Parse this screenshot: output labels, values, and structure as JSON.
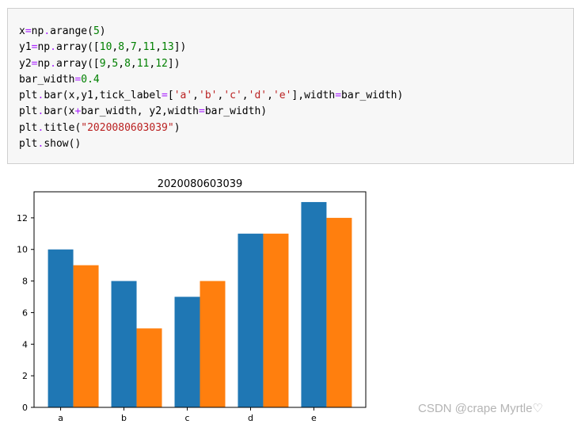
{
  "code_cell": {
    "lines": [
      [
        {
          "t": "x"
        },
        {
          "t": "=",
          "c": "op"
        },
        {
          "t": "np"
        },
        {
          "t": ".",
          "c": "op"
        },
        {
          "t": "arange"
        },
        {
          "t": "("
        },
        {
          "t": "5",
          "c": "num"
        },
        {
          "t": ")"
        }
      ],
      [
        {
          "t": "y1"
        },
        {
          "t": "=",
          "c": "op"
        },
        {
          "t": "np"
        },
        {
          "t": ".",
          "c": "op"
        },
        {
          "t": "array"
        },
        {
          "t": "(["
        },
        {
          "t": "10",
          "c": "num"
        },
        {
          "t": ","
        },
        {
          "t": "8",
          "c": "num"
        },
        {
          "t": ","
        },
        {
          "t": "7",
          "c": "num"
        },
        {
          "t": ","
        },
        {
          "t": "11",
          "c": "num"
        },
        {
          "t": ","
        },
        {
          "t": "13",
          "c": "num"
        },
        {
          "t": "])"
        }
      ],
      [
        {
          "t": "y2"
        },
        {
          "t": "=",
          "c": "op"
        },
        {
          "t": "np"
        },
        {
          "t": ".",
          "c": "op"
        },
        {
          "t": "array"
        },
        {
          "t": "(["
        },
        {
          "t": "9",
          "c": "num"
        },
        {
          "t": ","
        },
        {
          "t": "5",
          "c": "num"
        },
        {
          "t": ","
        },
        {
          "t": "8",
          "c": "num"
        },
        {
          "t": ","
        },
        {
          "t": "11",
          "c": "num"
        },
        {
          "t": ","
        },
        {
          "t": "12",
          "c": "num"
        },
        {
          "t": "])"
        }
      ],
      [
        {
          "t": "bar_width"
        },
        {
          "t": "=",
          "c": "op"
        },
        {
          "t": "0.4",
          "c": "num"
        }
      ],
      [
        {
          "t": "plt"
        },
        {
          "t": ".",
          "c": "op"
        },
        {
          "t": "bar(x,y1,tick_label"
        },
        {
          "t": "=",
          "c": "op"
        },
        {
          "t": "["
        },
        {
          "t": "'a'",
          "c": "str"
        },
        {
          "t": ","
        },
        {
          "t": "'b'",
          "c": "str"
        },
        {
          "t": ","
        },
        {
          "t": "'c'",
          "c": "str"
        },
        {
          "t": ","
        },
        {
          "t": "'d'",
          "c": "str"
        },
        {
          "t": ","
        },
        {
          "t": "'e'",
          "c": "str"
        },
        {
          "t": "],width"
        },
        {
          "t": "=",
          "c": "op"
        },
        {
          "t": "bar_width)"
        }
      ],
      [
        {
          "t": "plt"
        },
        {
          "t": ".",
          "c": "op"
        },
        {
          "t": "bar(x"
        },
        {
          "t": "+",
          "c": "op"
        },
        {
          "t": "bar_width, y2,width"
        },
        {
          "t": "=",
          "c": "op"
        },
        {
          "t": "bar_width)"
        }
      ],
      [
        {
          "t": "plt"
        },
        {
          "t": ".",
          "c": "op"
        },
        {
          "t": "title("
        },
        {
          "t": "\"2020080603039\"",
          "c": "str"
        },
        {
          "t": ")"
        }
      ],
      [
        {
          "t": "plt"
        },
        {
          "t": ".",
          "c": "op"
        },
        {
          "t": "show()"
        }
      ]
    ]
  },
  "chart_data": {
    "type": "bar",
    "title": "2020080603039",
    "xlabel": "",
    "ylabel": "",
    "categories": [
      "a",
      "b",
      "c",
      "d",
      "e"
    ],
    "series": [
      {
        "values": [
          10,
          8,
          7,
          11,
          13
        ],
        "color": "#1f77b4"
      },
      {
        "values": [
          9,
          5,
          8,
          11,
          12
        ],
        "color": "#ff7f0e"
      }
    ],
    "bar_width": 0.4,
    "xlim": [
      -0.42,
      4.82
    ],
    "ylim": [
      0,
      13.65
    ],
    "yticks": [
      0,
      2,
      4,
      6,
      8,
      10,
      12
    ],
    "grid": false
  },
  "watermark": "CSDN @crape Myrtle♡"
}
